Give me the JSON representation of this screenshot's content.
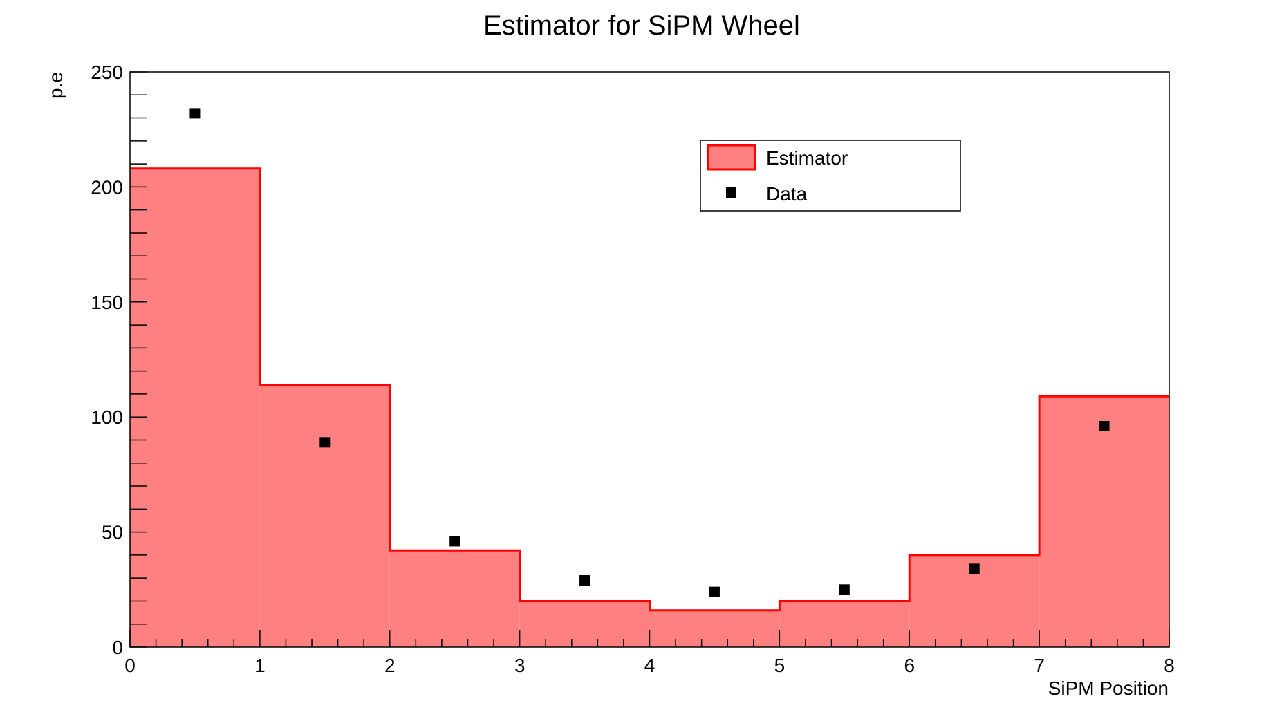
{
  "chart_data": {
    "type": "bar",
    "title": "Estimator for SiPM Wheel",
    "xlabel": "SiPM Position",
    "ylabel": "p.e",
    "xlim": [
      0,
      8
    ],
    "ylim": [
      0,
      250
    ],
    "x_ticks": [
      0,
      1,
      2,
      3,
      4,
      5,
      6,
      7,
      8
    ],
    "y_ticks": [
      0,
      50,
      100,
      150,
      200,
      250
    ],
    "grid": false,
    "legend_position": "top-right",
    "histogram": {
      "name": "Estimator",
      "bin_edges": [
        0,
        1,
        2,
        3,
        4,
        5,
        6,
        7,
        8
      ],
      "values": [
        208,
        114,
        42,
        20,
        16,
        20,
        40,
        109
      ],
      "fill_color": "#ff8080",
      "line_color": "#ff0000"
    },
    "points": {
      "name": "Data",
      "x": [
        0.5,
        1.5,
        2.5,
        3.5,
        4.5,
        5.5,
        6.5,
        7.5
      ],
      "y": [
        232,
        89,
        46,
        29,
        24,
        25,
        34,
        96
      ],
      "color": "#000000"
    }
  }
}
